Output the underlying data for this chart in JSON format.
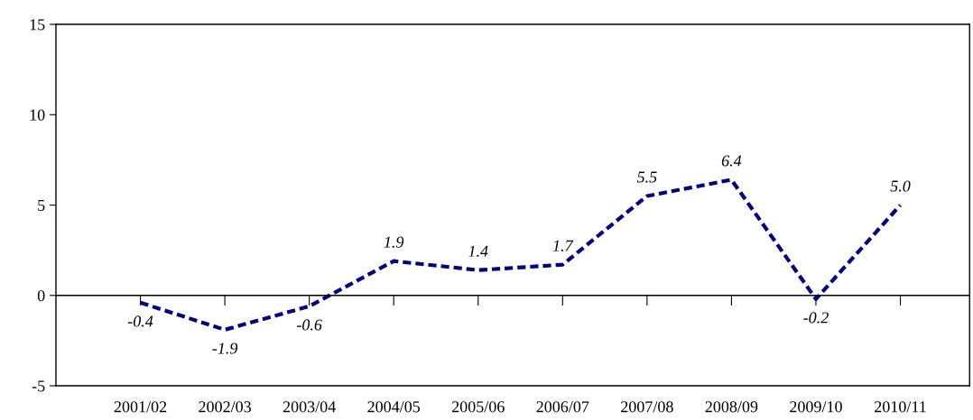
{
  "chart_data": {
    "type": "line",
    "categories": [
      "2001/02",
      "2002/03",
      "2003/04",
      "2004/05",
      "2005/06",
      "2006/07",
      "2007/08",
      "2008/09",
      "2009/10",
      "2010/11"
    ],
    "series": [
      {
        "color": "#000080",
        "values": [
          -0.4,
          -1.9,
          -0.6,
          1.9,
          1.4,
          1.7,
          5.5,
          6.4,
          -0.2,
          5.0
        ]
      }
    ],
    "ylim": [
      -5,
      15
    ],
    "yticks": [
      -5,
      0,
      5,
      10,
      15
    ],
    "value_labels": [
      "-0.4",
      "-1.9",
      "-0.6",
      "1.9",
      "1.4",
      "1.7",
      "5.5",
      "6.4",
      "-0.2",
      "5.0"
    ],
    "ref_lines": [
      {
        "axis": "y",
        "value": 0,
        "color": "#000000"
      }
    ],
    "line_style": "dashed",
    "marker": "none",
    "legend": false
  }
}
